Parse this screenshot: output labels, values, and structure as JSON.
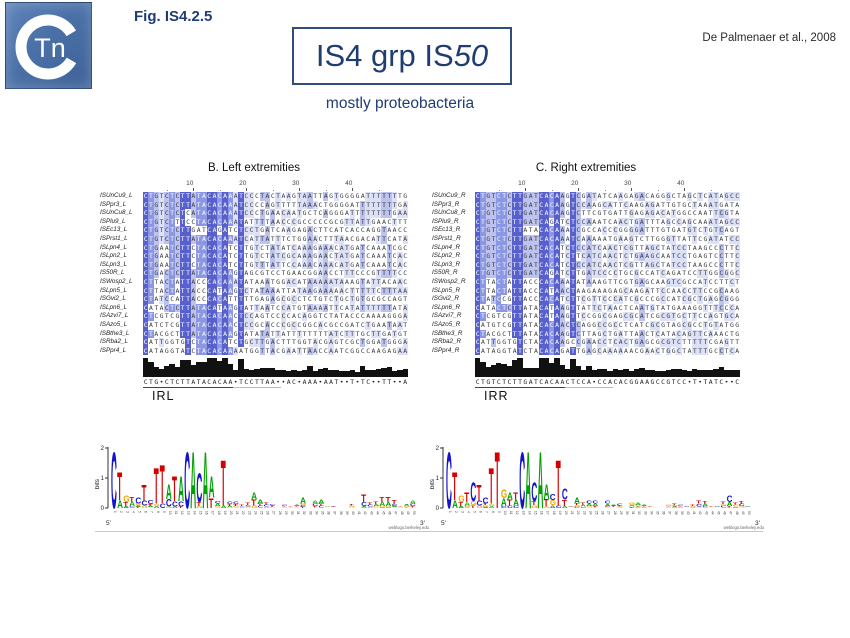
{
  "slide": {
    "fig_label": "Fig. IS4.2.5",
    "title_prefix": "IS4 grp IS",
    "title_italic": "50",
    "citation": "De Palmenaer et al., 2008",
    "subtitle": "mostly proteobacteria",
    "logo": {
      "tn": "Tn"
    }
  },
  "palette": {
    "navy": "#1f3c73",
    "box_border": "#2e4d7b",
    "shade_strong": "#5760cc",
    "shade_medium": "#8c97e3",
    "shade_light": "#bcc3ef",
    "shade_faint": "#dde1f8",
    "base_a": "#00a000",
    "base_c": "#1414cc",
    "base_g": "#eaa500",
    "base_t": "#d40000"
  },
  "panels": [
    {
      "title": "B. Left extremities",
      "ruler_ticks": [
        10,
        20,
        30,
        40
      ],
      "ir_label": "IRL",
      "consensus": "CTG•CTCTTATACACAA•TCCTTAA••AC•AAA•AAT••T•TC••TT••A",
      "rows": [
        {
          "name": "ISUnCu9_L",
          "seq": "CTGTCTCTTATACACAAATCCCTACTAAGTAATTAGTGGGGATTTTTTTG"
        },
        {
          "name": "ISPpr3_L",
          "seq": "CTGTCTCTTATACACAAATCCCCAGTTTTTAAACTGGGGATTTTTTTTGA"
        },
        {
          "name": "ISUnCu8_L",
          "seq": "CTGTCTCTCATACACAAATCCCTGAACAATGCTCAGGGATTTTTTTTGAA"
        },
        {
          "name": "ISPlu9_L",
          "seq": "CTGTCTTTCCTACACAAATATTTTAACCCGCCCCCGCGTTATTGAACTTT"
        },
        {
          "name": "ISEc13_L",
          "seq": "CTGTCTCTTGATCAGATCTCCTGATCAAGAGACTTCATCACCAGGTAACC"
        },
        {
          "name": "ISPrst1_L",
          "seq": "CTGTCTCTTATACACAAATCATTATTTCTGGAACTTTAACGACATTCATA"
        },
        {
          "name": "ISLpn4_L",
          "seq": "CTGAATCTTCTACACATCTTGTCTATATCAAAGAAACATGATCAAATCGC"
        },
        {
          "name": "ISLpn2_L",
          "seq": "CTGAATCTTCTACACATCTTGTCTATCGCAAAGAACTATGATCAAATCAC"
        },
        {
          "name": "ISLpn3_L",
          "seq": "CTGAATCTTCTACACATCTTGTTTATTCCAAACAAACATGATCAAATCAC"
        },
        {
          "name": "IS50R_L",
          "seq": "CTGACTCTTATACACAAGTAGCGTCCTGAACGGAACCTTTCCCGTTTTCC"
        },
        {
          "name": "ISWosp2_L",
          "seq": "CTTACTATTACCCACAAATATAAATGGACATAAAAATAAAGTATTACAAC"
        },
        {
          "name": "ISLpn5_L",
          "seq": "CTTACTATTACCCATAAGTCTATAAATTATAAGAAAAACTTTTTCTTTAA"
        },
        {
          "name": "ISGvi2_L",
          "seq": "CTATCCATTACCCACATTTTTGAGAGCGCCTCTGTCTGCTGTGCGCCAGT"
        },
        {
          "name": "ISLpn6_L",
          "seq": "CATACTCTTATACATAAGTATTAATCCATGTAAAATTCATATTTTTTATA"
        },
        {
          "name": "ISAzvi7_L",
          "seq": "CTCGTCGTTATACACAACTCCAGTCCCCACAGGTCTATACCCAAAAGGGA"
        },
        {
          "name": "ISAzo5_L",
          "seq": "CATCTCGTTATACACAACTCCGCACCCGCCGGCACGCCGATCTGAATAAT"
        },
        {
          "name": "ISBthe3_L",
          "seq": "CTACGCTTTATACACAAGTATATATTATTTTTTTTATCTTTGCTTGATGT"
        },
        {
          "name": "ISRba2_L",
          "seq": "CATTGGTGTCTACACATCTGCTTGACTTTGGTACGAGTCGCTGGATGGGA"
        },
        {
          "name": "ISPpr4_L",
          "seq": "CATAGGTATCTACACAAAATGGTTACGAATTAACCAATCGGCCAAGAGAA"
        }
      ]
    },
    {
      "title": "C. Right extremities",
      "ruler_ticks": [
        10,
        20,
        30,
        40
      ],
      "ir_label": "IRR",
      "consensus": "CTGTCTCTTGATCACAACTCCA•CCACACGGAAGCCGTCC•T•TATC••C",
      "rows": [
        {
          "name": "ISUnCu9_R",
          "seq": "CTGTCTCTTGATCACAAGTCGATATCAAGAGACAGGGCTAGCTCATAGCC"
        },
        {
          "name": "ISPpr3_R",
          "seq": "CTGTCTCTTGATCACAAGTCCAAGCATTCAAGAGATTGTGCTAAATGATA"
        },
        {
          "name": "ISUnCu8_R",
          "seq": "CTGTCTCTTGATCACAAGTCTTCGTGATTGAGAGACATGGCCAATTCGTA"
        },
        {
          "name": "ISPlu9_R",
          "seq": "CTGTCTCTTGATCAGATCTCCAAATCAACTGATTTAGCCAGCAAATAGCC"
        },
        {
          "name": "ISEc13_R",
          "seq": "CTGTCTCTTATACACAAATCGCCACCCGGGGATTTGTGATGTCTGTCAGT"
        },
        {
          "name": "ISPrst1_R",
          "seq": "CTGTCTCTTGATCACAAATCAAAAATGAAGTCTTGGGTTATTCGATATCC"
        },
        {
          "name": "ISLpn4_R",
          "seq": "CTGTCTCTTGATCACATCTCCATCAACTCGTTAGCTATCCTAAGCCCTTC"
        },
        {
          "name": "ISLpn2_R",
          "seq": "CTGTCTCTTGATCACATCTTCATCAACTCTGAAGCAATCCTGAGTCCTTC"
        },
        {
          "name": "ISLpn3_R",
          "seq": "CTGTCTCTTGATCACATCTCCATCAACTCGTTAGCTATCCTAAGCCCTTC"
        },
        {
          "name": "IS50R_R",
          "seq": "CTGTCTCTTGATCAGATCTTGATCCCCTGCGCCATCAGATCCTTGGCGGC"
        },
        {
          "name": "ISWosp2_R",
          "seq": "CTTACTATTACCCACAAATATAAAGTTCGTGAGCAAGTCGCCATCCTTCT"
        },
        {
          "name": "ISLpn5_R",
          "seq": "CTTACTATTACCCATAACTAAGAAAGAGCAAGATTCCAACCTTCCGCAAG"
        },
        {
          "name": "ISGvi2_R",
          "seq": "CTATCCGTTACCCACATCTTCGTTCCCATCGCCCGCCATCGCTGAGCGGG"
        },
        {
          "name": "ISLpn6_R",
          "seq": "CATACTCTTATACATAAGTTATTCTAACTCAATGTATGAAAGGTTTCCCA"
        },
        {
          "name": "ISAzvi7_R",
          "seq": "CTCGTCGTTATACATAAGTTCCGGCGAGCGCATCGCGTGCTTCCAGTGCA"
        },
        {
          "name": "ISAzo5_R",
          "seq": "CATGTCGTTATACACAACTCAGGCCGCCTCATCGCGTAGCGCCTGTATGG"
        },
        {
          "name": "ISBthe3_R",
          "seq": "CTACGCTTTATACACAAGTCTTAGCTGATTAACTCATACAGTTCAAACTG"
        },
        {
          "name": "ISRba2_R",
          "seq": "CATTGGTGTCTACACAAGCCGAACCTCACTGAGCGCGTCTTTTTCGAGTT"
        },
        {
          "name": "ISPpr4_R",
          "seq": "CATAGGTATCTACACAGATTGAGCAAAAAACGAACTGGCTATTTGCCTCA"
        }
      ]
    }
  ],
  "logos": {
    "ylabel": "bits",
    "yticks": [
      "2",
      "1",
      "0"
    ],
    "five_prime": "5'",
    "three_prime": "3'",
    "credit": "weblogo.berkeley.edu"
  }
}
